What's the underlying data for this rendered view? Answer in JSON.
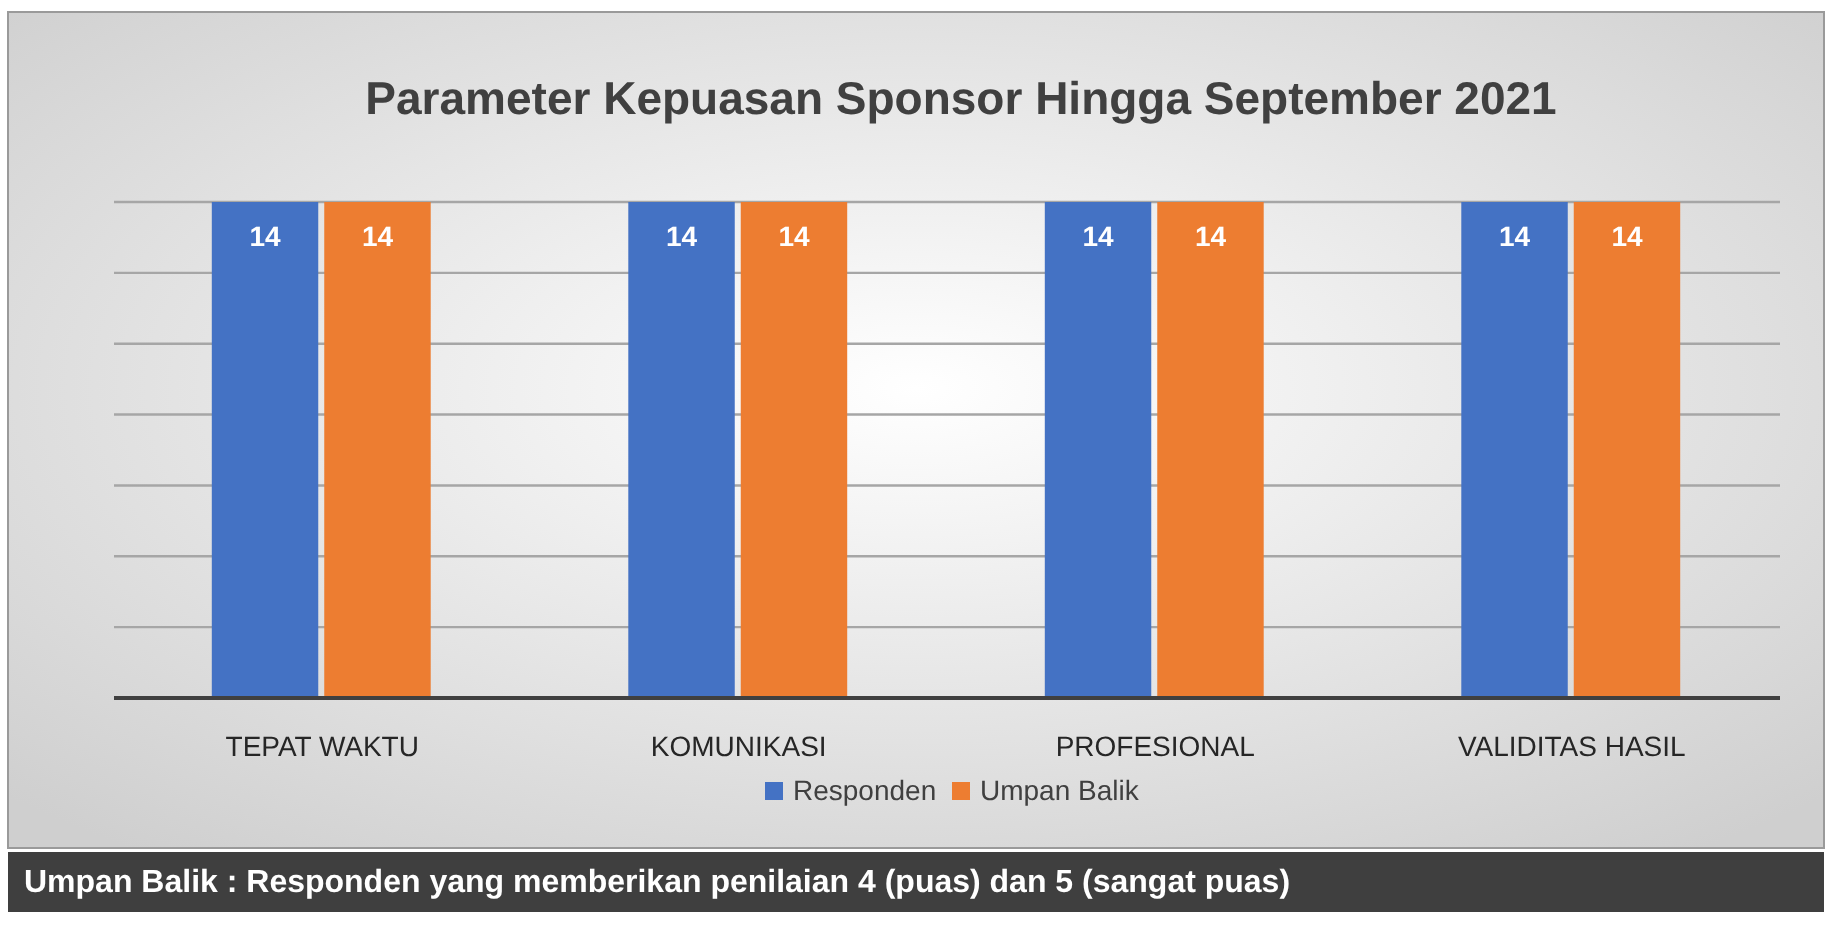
{
  "chart_data": {
    "type": "bar",
    "title": "Parameter Kepuasan Sponsor Hingga September 2021",
    "categories": [
      "TEPAT WAKTU",
      "KOMUNIKASI",
      "PROFESIONAL",
      "VALIDITAS HASIL"
    ],
    "series": [
      {
        "name": "Responden",
        "color": "#4472c4",
        "values": [
          14,
          14,
          14,
          14
        ]
      },
      {
        "name": "Umpan Balik",
        "color": "#ed7d31",
        "values": [
          14,
          14,
          14,
          14
        ]
      }
    ],
    "ylim": [
      0,
      14
    ],
    "yticks": [
      {
        "value": 0,
        "label": null
      },
      {
        "value": 2,
        "label": null
      },
      {
        "value": 4,
        "label": null
      },
      {
        "value": 6,
        "label": null
      },
      {
        "value": 8,
        "label": null
      },
      {
        "value": 10,
        "label": null
      },
      {
        "value": 12,
        "label": null
      },
      {
        "value": 14,
        "label": null
      }
    ],
    "tick_labels": "x",
    "grid": "y",
    "data_labels": true,
    "legend": "bottom",
    "annotations": [
      "Umpan Balik : Responden yang memberikan penilaian 4 (puas) dan 5 (sangat puas)"
    ]
  }
}
